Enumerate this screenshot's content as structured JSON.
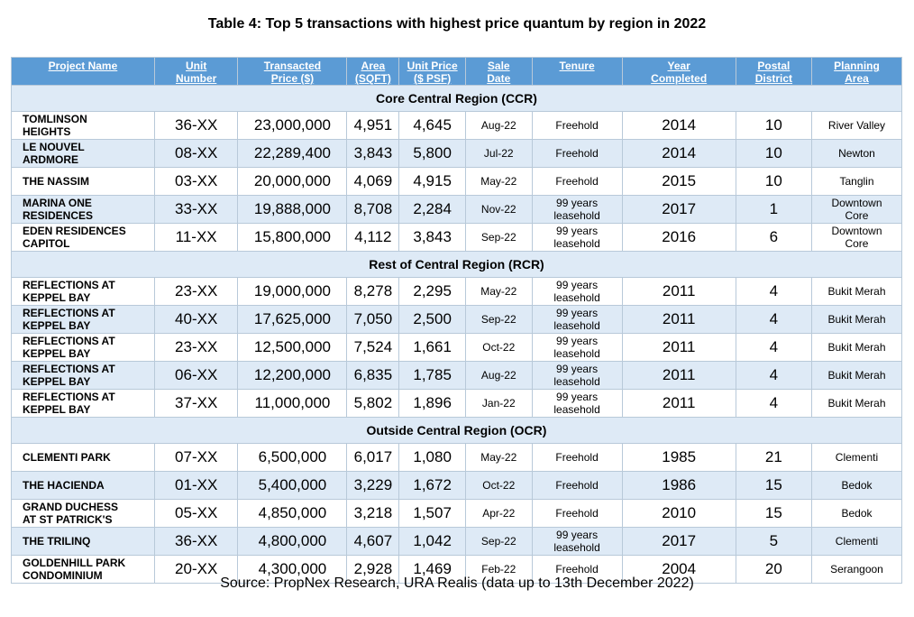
{
  "title": "Table 4: Top 5 transactions with highest price quantum by region in 2022",
  "headers": {
    "project": [
      "Project Name"
    ],
    "unit": [
      "Unit",
      "Number"
    ],
    "price": [
      "Transacted",
      "Price ($)"
    ],
    "area": [
      "Area",
      "(SQFT)"
    ],
    "psf": [
      "Unit Price",
      "($ PSF)"
    ],
    "date": [
      "Sale",
      "Date"
    ],
    "tenure": [
      "Tenure"
    ],
    "year": [
      "Year",
      "Completed"
    ],
    "district": [
      "Postal",
      "District"
    ],
    "planning": [
      "Planning",
      "Area"
    ]
  },
  "regions": [
    {
      "name": "Core Central Region (CCR)",
      "rows": [
        {
          "project": [
            "TOMLINSON",
            "HEIGHTS"
          ],
          "unit": "36-XX",
          "price": "23,000,000",
          "area": "4,951",
          "psf": "4,645",
          "date": "Aug-22",
          "tenure": [
            "Freehold"
          ],
          "year": "2014",
          "district": "10",
          "planning": [
            "River Valley"
          ]
        },
        {
          "project": [
            "LE NOUVEL",
            "ARDMORE"
          ],
          "unit": "08-XX",
          "price": "22,289,400",
          "area": "3,843",
          "psf": "5,800",
          "date": "Jul-22",
          "tenure": [
            "Freehold"
          ],
          "year": "2014",
          "district": "10",
          "planning": [
            "Newton"
          ]
        },
        {
          "project": [
            "THE NASSIM"
          ],
          "unit": "03-XX",
          "price": "20,000,000",
          "area": "4,069",
          "psf": "4,915",
          "date": "May-22",
          "tenure": [
            "Freehold"
          ],
          "year": "2015",
          "district": "10",
          "planning": [
            "Tanglin"
          ]
        },
        {
          "project": [
            "MARINA ONE",
            "RESIDENCES"
          ],
          "unit": "33-XX",
          "price": "19,888,000",
          "area": "8,708",
          "psf": "2,284",
          "date": "Nov-22",
          "tenure": [
            "99 years",
            "leasehold"
          ],
          "year": "2017",
          "district": "1",
          "planning": [
            "Downtown",
            "Core"
          ]
        },
        {
          "project": [
            "EDEN RESIDENCES",
            "CAPITOL"
          ],
          "unit": "11-XX",
          "price": "15,800,000",
          "area": "4,112",
          "psf": "3,843",
          "date": "Sep-22",
          "tenure": [
            "99 years",
            "leasehold"
          ],
          "year": "2016",
          "district": "6",
          "planning": [
            "Downtown",
            "Core"
          ]
        }
      ]
    },
    {
      "name": "Rest of Central Region (RCR)",
      "rows": [
        {
          "project": [
            "REFLECTIONS AT",
            "KEPPEL BAY"
          ],
          "unit": "23-XX",
          "price": "19,000,000",
          "area": "8,278",
          "psf": "2,295",
          "date": "May-22",
          "tenure": [
            "99 years",
            "leasehold"
          ],
          "year": "2011",
          "district": "4",
          "planning": [
            "Bukit Merah"
          ]
        },
        {
          "project": [
            "REFLECTIONS AT",
            "KEPPEL BAY"
          ],
          "unit": "40-XX",
          "price": "17,625,000",
          "area": "7,050",
          "psf": "2,500",
          "date": "Sep-22",
          "tenure": [
            "99 years",
            "leasehold"
          ],
          "year": "2011",
          "district": "4",
          "planning": [
            "Bukit Merah"
          ]
        },
        {
          "project": [
            "REFLECTIONS AT",
            "KEPPEL BAY"
          ],
          "unit": "23-XX",
          "price": "12,500,000",
          "area": "7,524",
          "psf": "1,661",
          "date": "Oct-22",
          "tenure": [
            "99 years",
            "leasehold"
          ],
          "year": "2011",
          "district": "4",
          "planning": [
            "Bukit Merah"
          ]
        },
        {
          "project": [
            "REFLECTIONS AT",
            "KEPPEL BAY"
          ],
          "unit": "06-XX",
          "price": "12,200,000",
          "area": "6,835",
          "psf": "1,785",
          "date": "Aug-22",
          "tenure": [
            "99 years",
            "leasehold"
          ],
          "year": "2011",
          "district": "4",
          "planning": [
            "Bukit Merah"
          ]
        },
        {
          "project": [
            "REFLECTIONS AT",
            "KEPPEL BAY"
          ],
          "unit": "37-XX",
          "price": "11,000,000",
          "area": "5,802",
          "psf": "1,896",
          "date": "Jan-22",
          "tenure": [
            "99 years",
            "leasehold"
          ],
          "year": "2011",
          "district": "4",
          "planning": [
            "Bukit Merah"
          ]
        }
      ]
    },
    {
      "name": "Outside Central Region (OCR)",
      "rows": [
        {
          "project": [
            "CLEMENTI PARK"
          ],
          "unit": "07-XX",
          "price": "6,500,000",
          "area": "6,017",
          "psf": "1,080",
          "date": "May-22",
          "tenure": [
            "Freehold"
          ],
          "year": "1985",
          "district": "21",
          "planning": [
            "Clementi"
          ]
        },
        {
          "project": [
            "THE HACIENDA"
          ],
          "unit": "01-XX",
          "price": "5,400,000",
          "area": "3,229",
          "psf": "1,672",
          "date": "Oct-22",
          "tenure": [
            "Freehold"
          ],
          "year": "1986",
          "district": "15",
          "planning": [
            "Bedok"
          ]
        },
        {
          "project": [
            "GRAND DUCHESS",
            "AT ST PATRICK'S"
          ],
          "unit": "05-XX",
          "price": "4,850,000",
          "area": "3,218",
          "psf": "1,507",
          "date": "Apr-22",
          "tenure": [
            "Freehold"
          ],
          "year": "2010",
          "district": "15",
          "planning": [
            "Bedok"
          ]
        },
        {
          "project": [
            "THE TRILINQ"
          ],
          "unit": "36-XX",
          "price": "4,800,000",
          "area": "4,607",
          "psf": "1,042",
          "date": "Sep-22",
          "tenure": [
            "99 years",
            "leasehold"
          ],
          "year": "2017",
          "district": "5",
          "planning": [
            "Clementi"
          ]
        },
        {
          "project": [
            "GOLDENHILL PARK",
            "CONDOMINIUM"
          ],
          "unit": "20-XX",
          "price": "4,300,000",
          "area": "2,928",
          "psf": "1,469",
          "date": "Feb-22",
          "tenure": [
            "Freehold"
          ],
          "year": "2004",
          "district": "20",
          "planning": [
            "Serangoon"
          ]
        }
      ]
    }
  ],
  "source": "Source: PropNex Research, URA Realis (data up to 13th December 2022)"
}
